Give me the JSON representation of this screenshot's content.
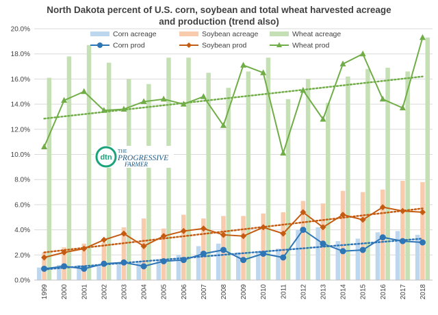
{
  "chart_data": {
    "type": "bar+line",
    "title_line1": "North Dakota percent of U.S. corn, soybean and total wheat harvested acreage",
    "title_line2": "and production (trend also)",
    "categories": [
      "1999",
      "2000",
      "2001",
      "2002",
      "2003",
      "2004",
      "2005",
      "2006",
      "2007",
      "2008",
      "2009",
      "2010",
      "2011",
      "2012",
      "2013",
      "2014",
      "2015",
      "2016",
      "2017",
      "2018"
    ],
    "ylim": [
      0,
      20
    ],
    "yticks": [
      "0.0%",
      "2.0%",
      "4.0%",
      "6.0%",
      "8.0%",
      "10.0%",
      "12.0%",
      "14.0%",
      "16.0%",
      "18.0%",
      "20.0%"
    ],
    "bar_series": [
      {
        "name": "Corn acreage",
        "color": "#bdd7ee",
        "values": [
          1.0,
          1.2,
          1.2,
          1.2,
          1.4,
          1.5,
          1.6,
          2.0,
          2.7,
          2.9,
          2.2,
          2.3,
          2.5,
          4.0,
          4.2,
          3.1,
          3.3,
          3.8,
          3.9,
          3.6
        ]
      },
      {
        "name": "Soybean acreage",
        "color": "#f8cbad",
        "values": [
          2.2,
          2.6,
          2.9,
          3.0,
          4.2,
          4.9,
          4.1,
          5.2,
          4.9,
          5.1,
          5.1,
          5.3,
          5.4,
          6.3,
          6.1,
          7.1,
          7.0,
          7.2,
          7.9,
          7.8
        ]
      },
      {
        "name": "Wheat acreage",
        "color": "#c5e0b4",
        "values": [
          16.1,
          17.8,
          18.7,
          17.3,
          16.0,
          15.6,
          17.7,
          17.7,
          16.5,
          15.3,
          16.6,
          17.7,
          14.4,
          16.0,
          14.1,
          16.2,
          16.8,
          16.9,
          16.6,
          19.3
        ]
      }
    ],
    "line_series": [
      {
        "name": "Corn prod",
        "color": "#2e75b6",
        "marker": "circle",
        "values": [
          0.9,
          1.1,
          0.9,
          1.3,
          1.4,
          1.1,
          1.5,
          1.6,
          2.1,
          2.4,
          1.6,
          2.1,
          1.8,
          4.0,
          2.9,
          2.3,
          2.4,
          3.4,
          3.1,
          3.0
        ],
        "trend": [
          0.85,
          3.3
        ]
      },
      {
        "name": "Soybean prod",
        "color": "#c55a11",
        "marker": "diamond",
        "values": [
          1.8,
          2.2,
          2.5,
          3.2,
          3.7,
          2.7,
          3.5,
          3.9,
          4.1,
          3.6,
          3.5,
          4.2,
          3.7,
          5.4,
          4.2,
          5.2,
          4.8,
          5.8,
          5.5,
          5.4
        ],
        "trend": [
          2.2,
          5.7
        ]
      },
      {
        "name": "Wheat prod",
        "color": "#70ad47",
        "marker": "triangle",
        "values": [
          10.6,
          14.3,
          15.0,
          13.5,
          13.6,
          14.2,
          14.4,
          14.0,
          14.6,
          12.3,
          17.1,
          16.5,
          10.1,
          15.1,
          12.8,
          17.2,
          18.0,
          14.4,
          13.7,
          19.3
        ],
        "trend": [
          12.85,
          16.2
        ]
      }
    ],
    "legend_position": "top",
    "grid": "horizontal"
  },
  "logo": {
    "mark": "dtn",
    "line1": "THE",
    "line2": "PROGRESSIVE",
    "line3": "FARMER"
  }
}
